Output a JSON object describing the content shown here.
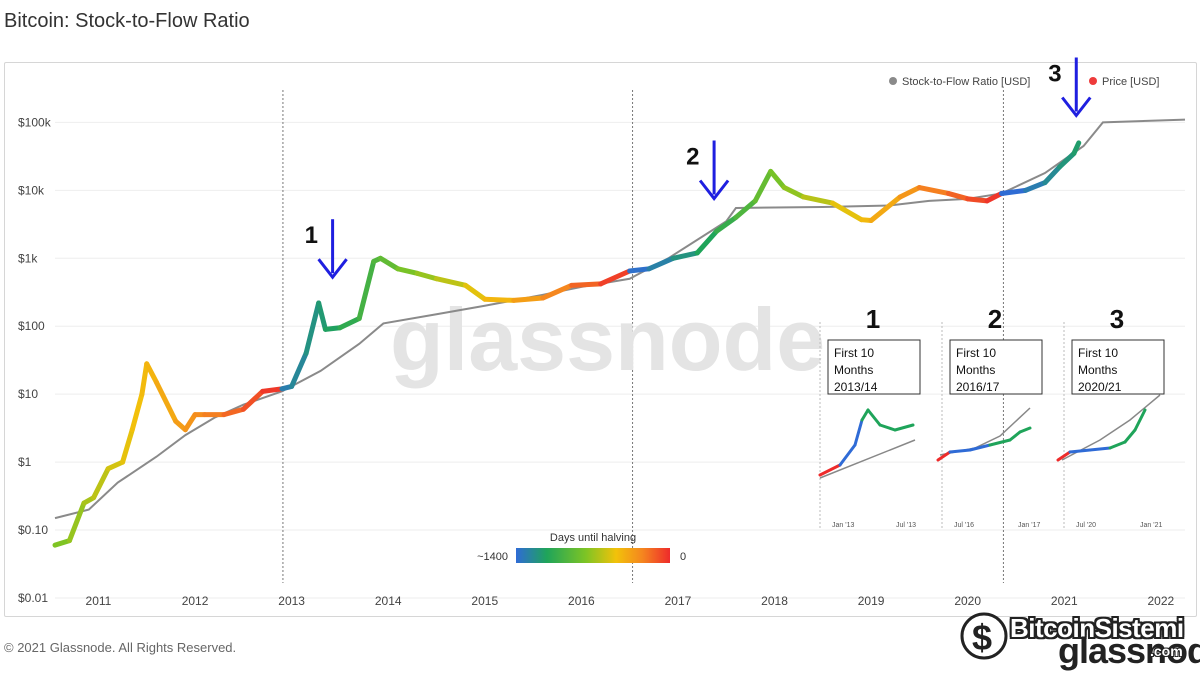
{
  "title": "Bitcoin: Stock-to-Flow Ratio",
  "footer": "© 2021 Glassnode. All Rights Reserved.",
  "watermark": "glassnode",
  "brand_overlay": {
    "name": "BitcoinSistemi",
    "domain": ".com",
    "logo_text": "glassnode"
  },
  "colors": {
    "s2f_line": "#8a8a8a",
    "price_legend": "#ee3b3b",
    "arrow": "#1f1fe0",
    "gradient": [
      "#2f6bd6",
      "#1fa45a",
      "#7cc425",
      "#f2c20a",
      "#f5861f",
      "#ee2b2b"
    ]
  },
  "chart_data": {
    "type": "line",
    "yscale": "log",
    "ylim": [
      0.01,
      300000
    ],
    "xlim": [
      2010.55,
      2022.25
    ],
    "y_ticks": [
      {
        "v": 0.01,
        "label": "$0.01"
      },
      {
        "v": 0.1,
        "label": "$0.10"
      },
      {
        "v": 1,
        "label": "$1"
      },
      {
        "v": 10,
        "label": "$10"
      },
      {
        "v": 100,
        "label": "$100"
      },
      {
        "v": 1000,
        "label": "$1k"
      },
      {
        "v": 10000,
        "label": "$10k"
      },
      {
        "v": 100000,
        "label": "$100k"
      }
    ],
    "x_ticks": [
      {
        "v": 2011,
        "label": "2011"
      },
      {
        "v": 2012,
        "label": "2012"
      },
      {
        "v": 2013,
        "label": "2013"
      },
      {
        "v": 2014,
        "label": "2014"
      },
      {
        "v": 2015,
        "label": "2015"
      },
      {
        "v": 2016,
        "label": "2016"
      },
      {
        "v": 2017,
        "label": "2017"
      },
      {
        "v": 2018,
        "label": "2018"
      },
      {
        "v": 2019,
        "label": "2019"
      },
      {
        "v": 2020,
        "label": "2020"
      },
      {
        "v": 2021,
        "label": "2021"
      },
      {
        "v": 2022,
        "label": "2022"
      }
    ],
    "halvings": [
      2012.91,
      2016.53,
      2020.37
    ],
    "legend": [
      {
        "name": "Stock-to-Flow Ratio [USD]",
        "color": "#8a8a8a"
      },
      {
        "name": "Price [USD]",
        "color": "#ee3b3b"
      }
    ],
    "colorbar": {
      "title": "Days until halving",
      "min_label": "~1400",
      "max_label": "0"
    },
    "s2f": {
      "x": [
        2010.55,
        2010.9,
        2011.2,
        2011.6,
        2011.9,
        2012.2,
        2012.5,
        2012.9,
        2013.3,
        2013.7,
        2013.95,
        2014.5,
        2015.0,
        2015.6,
        2016.0,
        2016.5,
        2016.9,
        2017.5,
        2017.6,
        2018.5,
        2019.2,
        2019.6,
        2020.0,
        2020.35,
        2020.8,
        2021.2,
        2021.4,
        2022.25
      ],
      "y": [
        0.15,
        0.2,
        0.5,
        1.2,
        2.5,
        4.5,
        7,
        11,
        22,
        55,
        110,
        150,
        200,
        290,
        380,
        500,
        1000,
        3500,
        5500,
        5700,
        6000,
        7000,
        7500,
        9000,
        18000,
        45000,
        100000,
        110000
      ]
    },
    "price": {
      "x": [
        2010.55,
        2010.7,
        2010.85,
        2010.95,
        2011.1,
        2011.25,
        2011.35,
        2011.45,
        2011.5,
        2011.6,
        2011.8,
        2011.9,
        2012.0,
        2012.1,
        2012.3,
        2012.5,
        2012.7,
        2012.9,
        2013.0,
        2013.15,
        2013.28,
        2013.35,
        2013.5,
        2013.7,
        2013.85,
        2013.92,
        2014.1,
        2014.3,
        2014.5,
        2014.8,
        2015.0,
        2015.3,
        2015.6,
        2015.9,
        2016.2,
        2016.5,
        2016.7,
        2016.95,
        2017.2,
        2017.4,
        2017.6,
        2017.8,
        2017.96,
        2018.1,
        2018.3,
        2018.6,
        2018.9,
        2019.0,
        2019.3,
        2019.5,
        2019.8,
        2020.0,
        2020.2,
        2020.35,
        2020.6,
        2020.8,
        2020.95,
        2021.1,
        2021.15
      ],
      "y": [
        0.06,
        0.07,
        0.25,
        0.3,
        0.8,
        1,
        3,
        10,
        28,
        15,
        4,
        3,
        5,
        5,
        5,
        6,
        11,
        12,
        13,
        40,
        220,
        90,
        95,
        130,
        900,
        1000,
        700,
        600,
        500,
        400,
        250,
        240,
        260,
        400,
        420,
        650,
        700,
        1000,
        1200,
        2500,
        4000,
        7000,
        19000,
        11000,
        8000,
        6500,
        3700,
        3600,
        8000,
        11000,
        9000,
        7500,
        7000,
        9000,
        10000,
        13000,
        22000,
        35000,
        50000
      ]
    },
    "annotations": [
      {
        "label": "1",
        "x": 2013.3,
        "y": 250
      },
      {
        "label": "2",
        "x": 2017.25,
        "y": 3600
      },
      {
        "label": "3",
        "x": 2021.0,
        "y": 60000
      }
    ],
    "insets": [
      {
        "number": "1",
        "text": [
          "First 10",
          "Months",
          "2013/14"
        ],
        "x_labels": [
          "Jan '13",
          "Jul '13"
        ]
      },
      {
        "number": "2",
        "text": [
          "First 10",
          "Months",
          "2016/17"
        ],
        "x_labels": [
          "Jul '16",
          "Jan '17"
        ]
      },
      {
        "number": "3",
        "text": [
          "First 10",
          "Months",
          "2020/21"
        ],
        "x_labels": [
          "Jul '20",
          "Jan '21"
        ]
      }
    ]
  }
}
